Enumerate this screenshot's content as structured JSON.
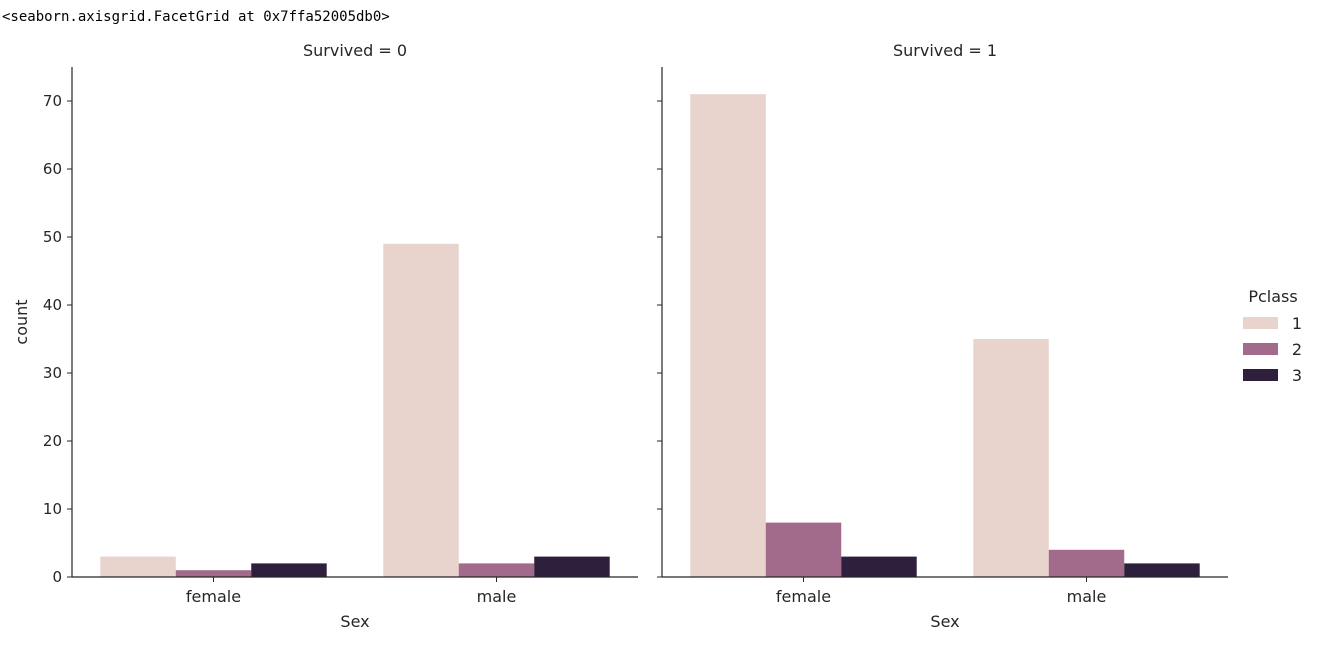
{
  "output_repr": "<seaborn.axisgrid.FacetGrid at 0x7ffa52005db0>",
  "chart_data": {
    "type": "bar",
    "library": "seaborn catplot (FacetGrid)",
    "xlabel": "Sex",
    "ylabel": "count",
    "categories": [
      "female",
      "male"
    ],
    "ylim": [
      0,
      75
    ],
    "yticks": [
      0,
      10,
      20,
      30,
      40,
      50,
      60,
      70
    ],
    "grid": false,
    "legend": {
      "title": "Pclass",
      "placement": "right",
      "entries": [
        "1",
        "2",
        "3"
      ],
      "colors": [
        "#e8d3cd",
        "#a26b8b",
        "#2e1f3c"
      ]
    },
    "facets": [
      {
        "title": "Survived = 0",
        "series": [
          {
            "name": "1",
            "values": [
              3,
              49
            ]
          },
          {
            "name": "2",
            "values": [
              1,
              2
            ]
          },
          {
            "name": "3",
            "values": [
              2,
              3
            ]
          }
        ]
      },
      {
        "title": "Survived = 1",
        "series": [
          {
            "name": "1",
            "values": [
              71,
              35
            ]
          },
          {
            "name": "2",
            "values": [
              8,
              4
            ]
          },
          {
            "name": "3",
            "values": [
              3,
              2
            ]
          }
        ]
      }
    ]
  }
}
